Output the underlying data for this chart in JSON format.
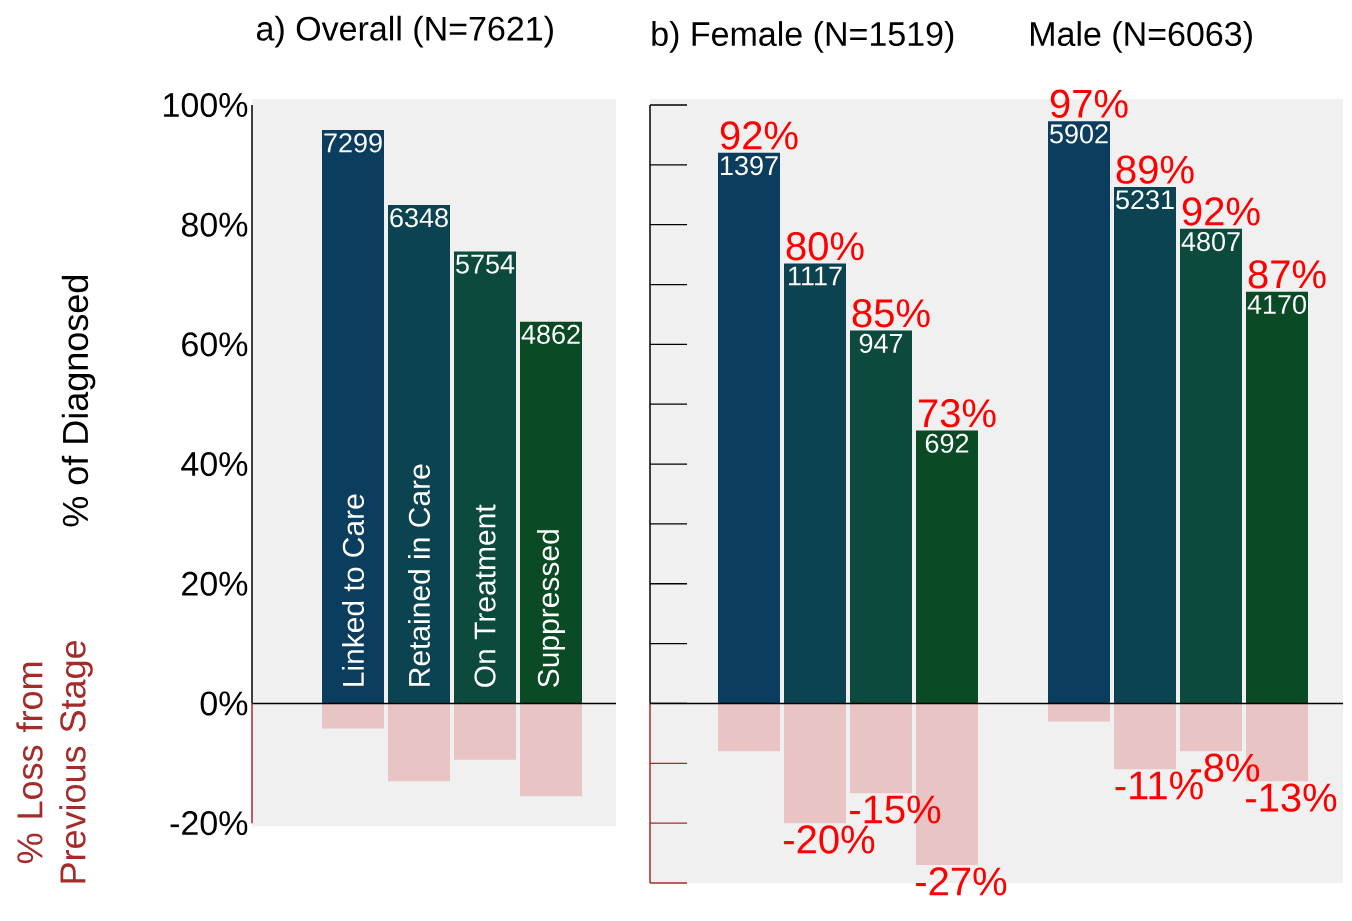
{
  "chart_data": {
    "type": "bar",
    "title": "a)  Overall (N=7621)",
    "ylabel": "% of Diagnosed",
    "categories": [
      "Linked to Care",
      "Retained in Care",
      "On Treatment",
      "Suppressed",
      null,
      null,
      null,
      null,
      null,
      null,
      null,
      null,
      null,
      null,
      null
    ],
    "stacked": true,
    "series": [
      {
        "colors": [
          "#0b3d5e",
          "#0b4450",
          "#0b4a3c",
          "#0a4a24",
          null,
          null,
          "#0b3d5e",
          "#0b4450",
          "#0b4a3c",
          "#0a4a24",
          null,
          "#0b3d5e",
          "#0b4450",
          "#0b4a3c",
          "#0a4a24"
        ],
        "values": [
          95.8,
          83.3,
          75.5,
          63.8,
          null,
          null,
          92,
          73.5,
          62.3,
          45.6,
          null,
          97.3,
          86.3,
          79.3,
          68.8
        ]
      },
      {
        "color": "#e8c4c4",
        "values": [
          -4.2,
          -13,
          -9.4,
          -15.5,
          null,
          null,
          -8,
          -20,
          -15,
          -27,
          null,
          -3,
          -11,
          -8,
          -13
        ],
        "value_labels": [
          null,
          null,
          null,
          null,
          null,
          null,
          null,
          "-20%",
          "-15%",
          "-27%",
          null,
          null,
          "-11%",
          "-8%",
          "-13%"
        ]
      }
    ],
    "ylim": [
      -30,
      100
    ],
    "yticks": [
      {
        "value": 100,
        "label": "100%"
      },
      {
        "value": 80,
        "label": "80%"
      },
      {
        "value": 60,
        "label": "60%"
      },
      {
        "value": 40,
        "label": "40%"
      },
      {
        "value": 20,
        "label": "20%"
      },
      {
        "value": 0,
        "label": "0%"
      },
      {
        "value": -20,
        "label": "-20%"
      }
    ],
    "annotations": [
      "b)  Female (N=1519)",
      "Male (N=6063)",
      "% Loss from Previous Stage",
      {
        "text": "7299",
        "y": 95.8
      },
      {
        "text": "6348",
        "y": 83.3
      },
      {
        "text": "5754",
        "y": 75.5
      },
      {
        "text": "4862",
        "y": 63.8
      },
      {
        "text": "1397",
        "y": 92
      },
      {
        "text": "1117",
        "y": 73.5
      },
      {
        "text": "947",
        "y": 62.3
      },
      {
        "text": "692",
        "y": 45.6
      },
      {
        "text": "5902",
        "y": 97.3
      },
      {
        "text": "5231",
        "y": 86.3
      },
      {
        "text": "4807",
        "y": 79.3
      },
      {
        "text": "4170",
        "y": 68.8
      },
      {
        "text": "92%",
        "y": 92
      },
      {
        "text": "80%",
        "y": 73.5
      },
      {
        "text": "85%",
        "y": 62.3
      },
      {
        "text": "73%",
        "y": 45.6
      },
      {
        "text": "97%",
        "y": 97.3
      },
      {
        "text": "89%",
        "y": 86.3
      },
      {
        "text": "92%",
        "y": 79.3
      },
      {
        "text": "87%",
        "y": 68.8
      }
    ]
  }
}
